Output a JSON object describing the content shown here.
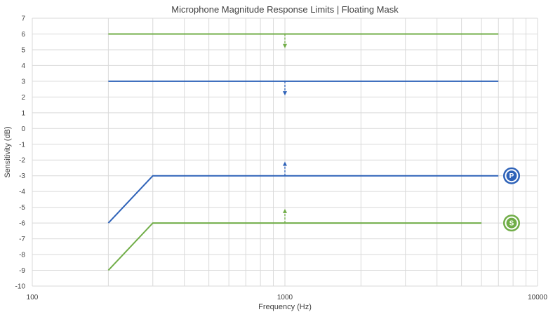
{
  "chart_data": {
    "type": "line",
    "title": "Microphone Magnitude Response Limits | Floating Mask",
    "xlabel": "Frequency (Hz)",
    "ylabel": "Sensitivity (dB)",
    "xscale": "log",
    "xlim": [
      100,
      10000
    ],
    "ylim": [
      -10,
      7
    ],
    "x_ticks": [
      "100",
      "1000",
      "10000"
    ],
    "y_ticks": [
      7,
      6,
      5,
      4,
      3,
      2,
      1,
      0,
      -1,
      -2,
      -3,
      -4,
      -5,
      -6,
      -7,
      -8,
      -9,
      -10
    ],
    "grid": true,
    "series": [
      {
        "color": "#70ad47",
        "x": [
          200,
          7000
        ],
        "y": [
          6,
          6
        ]
      },
      {
        "color": "#2e62b8",
        "x": [
          200,
          7000
        ],
        "y": [
          3,
          3
        ]
      },
      {
        "color": "#2e62b8",
        "x": [
          200,
          300,
          7000
        ],
        "y": [
          -6,
          -3,
          -3
        ]
      },
      {
        "color": "#70ad47",
        "x": [
          200,
          300,
          6000
        ],
        "y": [
          -9,
          -6,
          -6
        ]
      }
    ],
    "arrows": [
      {
        "color": "#70ad47",
        "x": 1000,
        "from": 6,
        "to": 5.1
      },
      {
        "color": "#2e62b8",
        "x": 1000,
        "from": 3,
        "to": 2.1
      },
      {
        "color": "#2e62b8",
        "x": 1000,
        "from": -3,
        "to": -2.1
      },
      {
        "color": "#70ad47",
        "x": 1000,
        "from": -6,
        "to": -5.1
      }
    ],
    "badges": [
      {
        "label": "P",
        "color": "#2e62b8",
        "y": -3
      },
      {
        "label": "S",
        "color": "#70ad47",
        "y": -6
      }
    ]
  }
}
